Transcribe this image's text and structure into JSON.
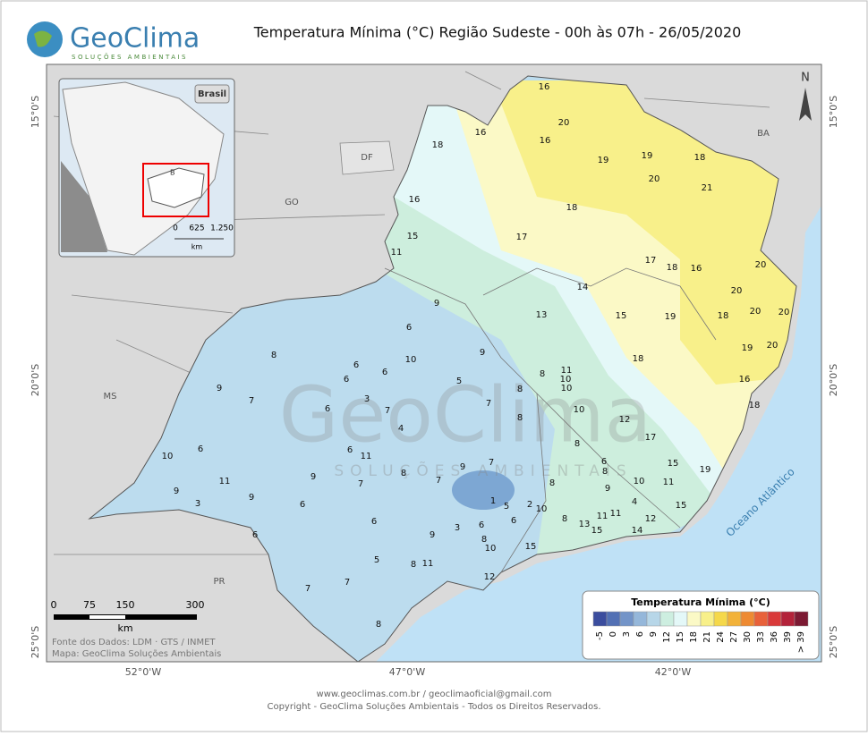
{
  "header": {
    "title": "Temperatura Mínima (°C) Região Sudeste - 00h às 07h - 26/05/2020",
    "logo": "GeoClima",
    "logo_tagline": "SOLUÇÕES AMBIENTAIS"
  },
  "inset": {
    "label": "Brasil",
    "state_label": "B",
    "scale_labels": [
      "0",
      "625",
      "1.250"
    ],
    "scale_unit": "km"
  },
  "map": {
    "north": "N",
    "states": [
      "DF",
      "GO",
      "BA",
      "MS",
      "PR"
    ],
    "ocean": "Oceano Atlântico",
    "lat_labels": [
      "15°0'S",
      "20°0'S",
      "25°0'S"
    ],
    "lon_labels": [
      "52°0'W",
      "47°0'W",
      "42°0'W"
    ],
    "watermark": "GeoClima",
    "watermark_tagline": "SOLUÇÕES AMBIENTAIS",
    "stations": [
      16,
      20,
      16,
      18,
      16,
      19,
      19,
      18,
      20,
      21,
      16,
      18,
      15,
      17,
      17,
      16,
      18,
      11,
      20,
      20,
      14,
      9,
      13,
      15,
      19,
      18,
      20,
      20,
      6,
      9,
      19,
      20,
      8,
      10,
      6,
      18,
      11,
      6,
      6,
      10,
      8,
      5,
      16,
      9,
      10,
      7,
      3,
      8,
      6,
      7,
      7,
      18,
      10,
      8,
      12,
      4,
      17,
      6,
      6,
      8,
      10,
      11,
      6,
      15,
      19,
      11,
      8,
      7,
      9,
      8,
      9,
      7,
      8,
      7,
      10,
      11,
      9,
      9,
      9,
      3,
      6,
      1,
      4,
      15,
      10,
      2,
      5,
      11,
      11,
      12,
      8,
      6,
      6,
      3,
      6,
      13,
      15,
      14,
      6,
      9,
      8,
      10,
      15,
      5,
      11,
      8,
      12,
      7,
      7,
      8
    ]
  },
  "scale_bar": {
    "labels": [
      "0",
      "75",
      "150",
      "300"
    ],
    "unit": "km"
  },
  "credits": [
    "Fonte dos Dados: LDM · GTS / INMET",
    "Mapa: GeoClima Soluções Ambientais"
  ],
  "legend": {
    "title": "Temperatura Mínima (°C)",
    "items": [
      {
        "label": "-5",
        "color": "#3b4d9e"
      },
      {
        "label": "0",
        "color": "#5270b4"
      },
      {
        "label": "3",
        "color": "#7394c8"
      },
      {
        "label": "6",
        "color": "#95b7da"
      },
      {
        "label": "9",
        "color": "#b7d6e8"
      },
      {
        "label": "12",
        "color": "#cdeee0"
      },
      {
        "label": "15",
        "color": "#e4f8f8"
      },
      {
        "label": "18",
        "color": "#fbf9c6"
      },
      {
        "label": "21",
        "color": "#f8f08a"
      },
      {
        "label": "24",
        "color": "#f5d84a"
      },
      {
        "label": "27",
        "color": "#f2b23a"
      },
      {
        "label": "30",
        "color": "#ee8a32"
      },
      {
        "label": "33",
        "color": "#e8613a"
      },
      {
        "label": "36",
        "color": "#d93a3a"
      },
      {
        "label": "39",
        "color": "#b3233a"
      },
      {
        "label": "> 39",
        "color": "#7c1a33"
      }
    ]
  },
  "footer": [
    "www.geoclimas.com.br / geoclimaoficial@gmail.com",
    "Copyright - GeoClima Soluções Ambientais - Todos os Direitos Reservados."
  ]
}
